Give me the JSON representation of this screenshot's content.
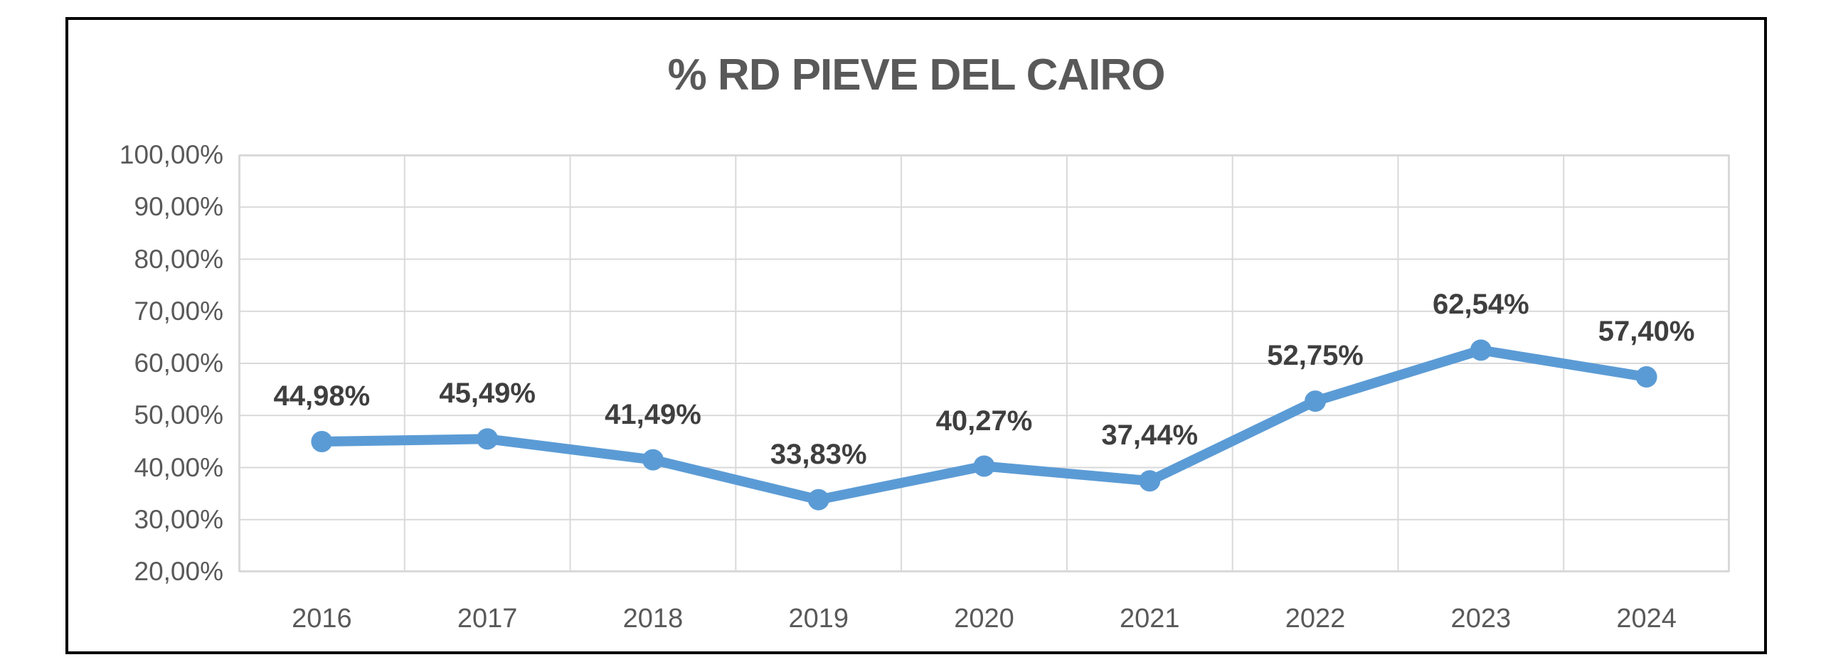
{
  "chart_data": {
    "type": "line",
    "title": "% RD PIEVE DEL CAIRO",
    "categories": [
      "2016",
      "2017",
      "2018",
      "2019",
      "2020",
      "2021",
      "2022",
      "2023",
      "2024"
    ],
    "series": [
      {
        "name": "% RD",
        "values": [
          44.98,
          45.49,
          41.49,
          33.83,
          40.27,
          37.44,
          52.75,
          62.54,
          57.4
        ]
      }
    ],
    "data_labels": [
      "44,98%",
      "45,49%",
      "41,49%",
      "33,83%",
      "40,27%",
      "37,44%",
      "52,75%",
      "62,54%",
      "57,40%"
    ],
    "y_tick_labels": [
      "100,00%",
      "90,00%",
      "80,00%",
      "70,00%",
      "60,00%",
      "50,00%",
      "40,00%",
      "30,00%",
      "20,00%"
    ],
    "ylim": [
      20,
      100
    ],
    "y_step": 10,
    "xlabel": "",
    "ylabel": "",
    "grid": true,
    "legend": "none",
    "colors": {
      "line": "#5B9BD5",
      "marker": "#5B9BD5",
      "gridline": "#D9D9D9",
      "plot_border": "#D9D9D9",
      "frame_border": "#000000",
      "title_text": "#595959",
      "axis_text": "#595959",
      "data_label_text": "#3f3f3f"
    }
  }
}
